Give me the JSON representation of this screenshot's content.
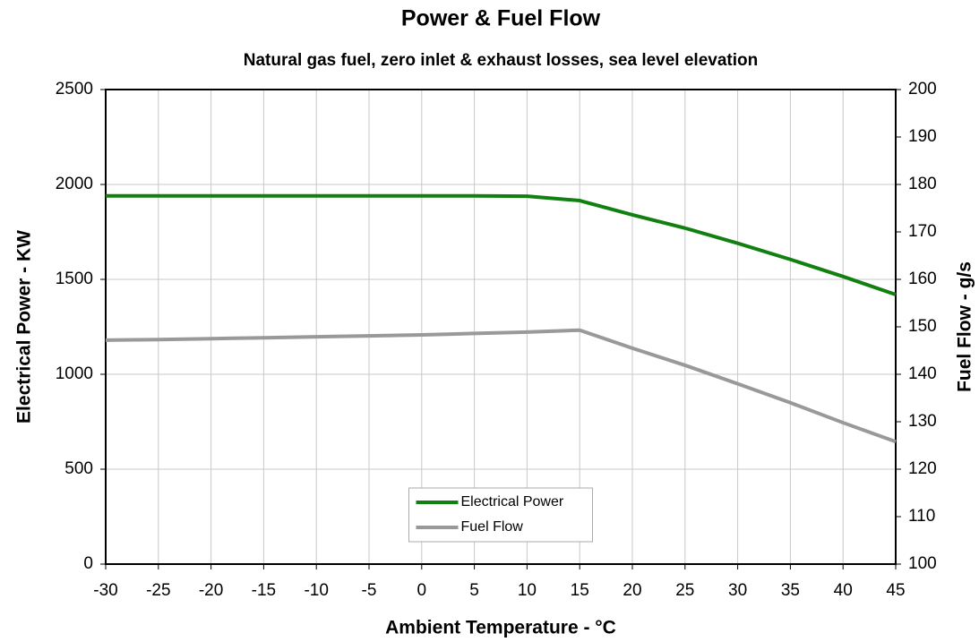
{
  "chart_data": {
    "type": "line",
    "title": "Power & Fuel Flow",
    "subtitle": "Natural gas fuel, zero inlet & exhaust losses, sea level elevation",
    "xlabel": "Ambient Temperature - °C",
    "ylabel": "Electrical Power - KW",
    "y2label": "Fuel Flow - g/s",
    "x": [
      -30,
      -25,
      -20,
      -15,
      -10,
      -5,
      0,
      5,
      10,
      15,
      20,
      25,
      30,
      35,
      40,
      45
    ],
    "series": [
      {
        "name": "Electrical Power",
        "color": "#118011",
        "values": [
          1940,
          1940,
          1940,
          1940,
          1940,
          1940,
          1940,
          1940,
          1938,
          1915,
          1840,
          1770,
          1690,
          1605,
          1515,
          1420
        ]
      },
      {
        "name": "Fuel Flow",
        "color": "#999999",
        "axis": "y2",
        "values": [
          147.2,
          147.3,
          147.5,
          147.7,
          147.9,
          148.1,
          148.3,
          148.6,
          148.9,
          149.3,
          145.5,
          141.9,
          138,
          134,
          129.8,
          125.8
        ]
      }
    ],
    "xlim": [
      -30,
      45
    ],
    "xticks": [
      -30,
      -25,
      -20,
      -15,
      -10,
      -5,
      0,
      5,
      10,
      15,
      20,
      25,
      30,
      35,
      40,
      45
    ],
    "ylim": [
      0,
      2500
    ],
    "yticks": [
      0,
      500,
      1000,
      1500,
      2000,
      2500
    ],
    "y2lim": [
      100,
      200
    ],
    "y2ticks": [
      100,
      110,
      120,
      130,
      140,
      150,
      160,
      170,
      180,
      190,
      200
    ],
    "grid": true,
    "legend": "lower center"
  }
}
